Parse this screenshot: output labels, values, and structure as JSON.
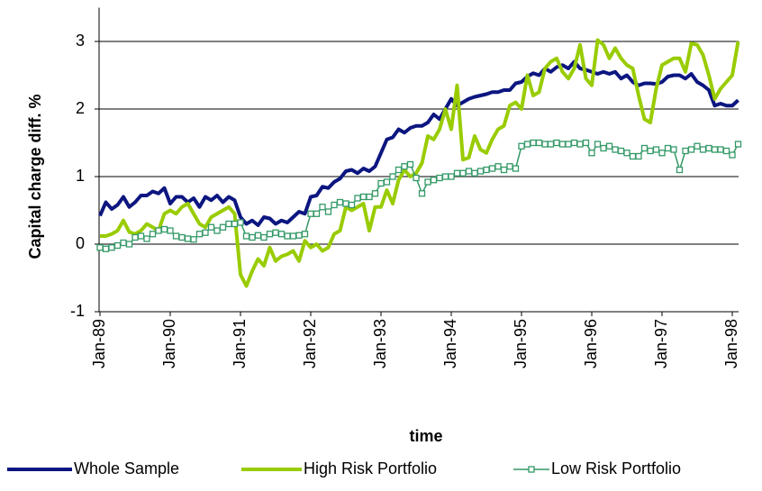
{
  "chart_data": {
    "type": "line",
    "y_label": "Capital charge diff. %",
    "x_label": "time",
    "ylim": [
      -1,
      3.5
    ],
    "yticks": [
      -1,
      0,
      1,
      2,
      3
    ],
    "grid": true,
    "legend": "bottom",
    "categories": [
      "Jan-89",
      null,
      null,
      null,
      null,
      null,
      null,
      null,
      null,
      null,
      null,
      null,
      "Jan-90",
      null,
      null,
      null,
      null,
      null,
      null,
      null,
      null,
      null,
      null,
      null,
      "Jan-91",
      null,
      null,
      null,
      null,
      null,
      null,
      null,
      null,
      null,
      null,
      null,
      "Jan-92",
      null,
      null,
      null,
      null,
      null,
      null,
      null,
      null,
      null,
      null,
      null,
      "Jan-93",
      null,
      null,
      null,
      null,
      null,
      null,
      null,
      null,
      null,
      null,
      null,
      "Jan-94",
      null,
      null,
      null,
      null,
      null,
      null,
      null,
      null,
      null,
      null,
      null,
      "Jan-95",
      null,
      null,
      null,
      null,
      null,
      null,
      null,
      null,
      null,
      null,
      null,
      "Jan-96",
      null,
      null,
      null,
      null,
      null,
      null,
      null,
      null,
      null,
      null,
      null,
      "Jan-97",
      null,
      null,
      null,
      null,
      null,
      null,
      null,
      null,
      null,
      null,
      null,
      "Jan-98",
      null
    ],
    "series": [
      {
        "name": "Whole Sample",
        "color": "#0c1680",
        "marker": false,
        "values": [
          0.42,
          0.62,
          0.52,
          0.58,
          0.7,
          0.55,
          0.62,
          0.72,
          0.72,
          0.78,
          0.75,
          0.83,
          0.6,
          0.7,
          0.7,
          0.62,
          0.68,
          0.55,
          0.7,
          0.65,
          0.72,
          0.62,
          0.7,
          0.65,
          0.4,
          0.3,
          0.35,
          0.28,
          0.4,
          0.38,
          0.3,
          0.35,
          0.32,
          0.4,
          0.48,
          0.45,
          0.7,
          0.72,
          0.85,
          0.83,
          0.92,
          0.97,
          1.08,
          1.1,
          1.05,
          1.12,
          1.08,
          1.15,
          1.35,
          1.55,
          1.58,
          1.7,
          1.65,
          1.72,
          1.75,
          1.75,
          1.8,
          1.92,
          1.85,
          2.0,
          2.15,
          2.05,
          2.1,
          2.15,
          2.18,
          2.2,
          2.22,
          2.25,
          2.25,
          2.28,
          2.28,
          2.38,
          2.4,
          2.48,
          2.53,
          2.5,
          2.6,
          2.55,
          2.62,
          2.65,
          2.6,
          2.7,
          2.6,
          2.58,
          2.55,
          2.52,
          2.55,
          2.52,
          2.55,
          2.45,
          2.5,
          2.4,
          2.35,
          2.38,
          2.38,
          2.37,
          2.4,
          2.48,
          2.5,
          2.5,
          2.45,
          2.52,
          2.4,
          2.35,
          2.28,
          2.05,
          2.08,
          2.05,
          2.05,
          2.13
        ]
      },
      {
        "name": "High Risk Portfolio",
        "color": "#99cc00",
        "marker": false,
        "values": [
          0.12,
          0.12,
          0.15,
          0.2,
          0.35,
          0.18,
          0.15,
          0.2,
          0.3,
          0.25,
          0.2,
          0.45,
          0.5,
          0.45,
          0.55,
          0.6,
          0.45,
          0.3,
          0.25,
          0.4,
          0.45,
          0.5,
          0.55,
          0.45,
          -0.45,
          -0.62,
          -0.4,
          -0.22,
          -0.32,
          -0.05,
          -0.25,
          -0.18,
          -0.15,
          -0.1,
          -0.25,
          0.05,
          -0.05,
          0.0,
          -0.1,
          -0.05,
          0.15,
          0.2,
          0.55,
          0.5,
          0.55,
          0.6,
          0.2,
          0.55,
          0.55,
          0.8,
          0.6,
          0.95,
          1.1,
          1.0,
          1.05,
          1.2,
          1.6,
          1.55,
          1.7,
          2.0,
          1.7,
          2.35,
          1.25,
          1.28,
          1.6,
          1.4,
          1.35,
          1.55,
          1.7,
          1.75,
          2.05,
          2.1,
          2.0,
          2.5,
          2.2,
          2.25,
          2.6,
          2.7,
          2.75,
          2.55,
          2.45,
          2.6,
          2.95,
          2.45,
          2.35,
          3.02,
          2.95,
          2.75,
          2.9,
          2.75,
          2.65,
          2.6,
          2.2,
          1.85,
          1.8,
          2.3,
          2.65,
          2.7,
          2.75,
          2.75,
          2.55,
          2.97,
          2.95,
          2.8,
          2.5,
          2.15,
          2.3,
          2.4,
          2.5,
          3.0
        ]
      },
      {
        "name": "Low Risk Portfolio",
        "color": "#339966",
        "marker": true,
        "values": [
          -0.05,
          -0.07,
          -0.05,
          -0.02,
          0.02,
          0.0,
          0.1,
          0.12,
          0.08,
          0.15,
          0.2,
          0.22,
          0.2,
          0.12,
          0.1,
          0.08,
          0.07,
          0.15,
          0.17,
          0.25,
          0.2,
          0.25,
          0.3,
          0.3,
          0.32,
          0.12,
          0.1,
          0.13,
          0.1,
          0.15,
          0.17,
          0.15,
          0.12,
          0.12,
          0.13,
          0.15,
          0.45,
          0.45,
          0.55,
          0.48,
          0.58,
          0.62,
          0.6,
          0.58,
          0.68,
          0.7,
          0.7,
          0.75,
          0.9,
          0.92,
          1.0,
          1.1,
          1.15,
          1.18,
          0.98,
          0.75,
          0.92,
          0.95,
          0.98,
          1.0,
          1.0,
          1.05,
          1.05,
          1.08,
          1.05,
          1.08,
          1.1,
          1.12,
          1.15,
          1.1,
          1.15,
          1.12,
          1.45,
          1.48,
          1.5,
          1.5,
          1.48,
          1.48,
          1.5,
          1.48,
          1.48,
          1.5,
          1.48,
          1.5,
          1.35,
          1.48,
          1.42,
          1.45,
          1.4,
          1.38,
          1.35,
          1.3,
          1.3,
          1.42,
          1.38,
          1.4,
          1.35,
          1.42,
          1.4,
          1.1,
          1.38,
          1.4,
          1.45,
          1.4,
          1.42,
          1.4,
          1.4,
          1.38,
          1.32,
          1.48
        ]
      }
    ]
  }
}
